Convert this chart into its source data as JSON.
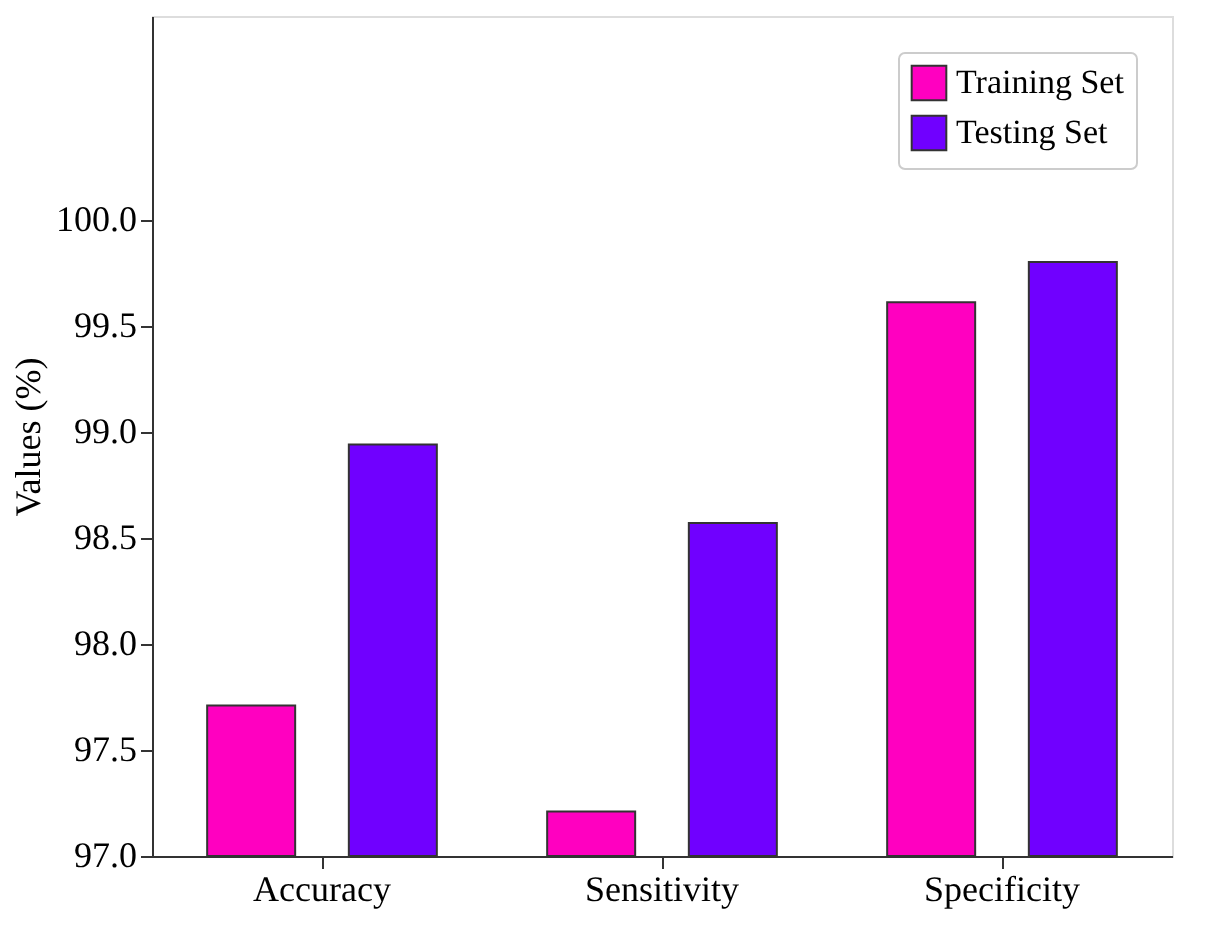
{
  "chart_data": {
    "type": "bar",
    "ylabel": "Values (%)",
    "categories": [
      "Accuracy",
      "Sensitivity",
      "Specificity"
    ],
    "series": [
      {
        "name": "Training Set",
        "color": "#ff00c0",
        "values": [
          97.71,
          97.21,
          99.61
        ]
      },
      {
        "name": "Testing Set",
        "color": "#7000ff",
        "values": [
          98.94,
          98.57,
          99.8
        ]
      }
    ],
    "ylim": [
      97.0,
      100.96
    ],
    "yticks": [
      {
        "value": 97.0,
        "label": "97.0"
      },
      {
        "value": 97.5,
        "label": "97.5"
      },
      {
        "value": 98.0,
        "label": "98.0"
      },
      {
        "value": 98.5,
        "label": "98.5"
      },
      {
        "value": 99.0,
        "label": "99.0"
      },
      {
        "value": 99.5,
        "label": "99.5"
      },
      {
        "value": 100.0,
        "label": "100.0"
      }
    ],
    "grid": false,
    "legend": "top right"
  }
}
